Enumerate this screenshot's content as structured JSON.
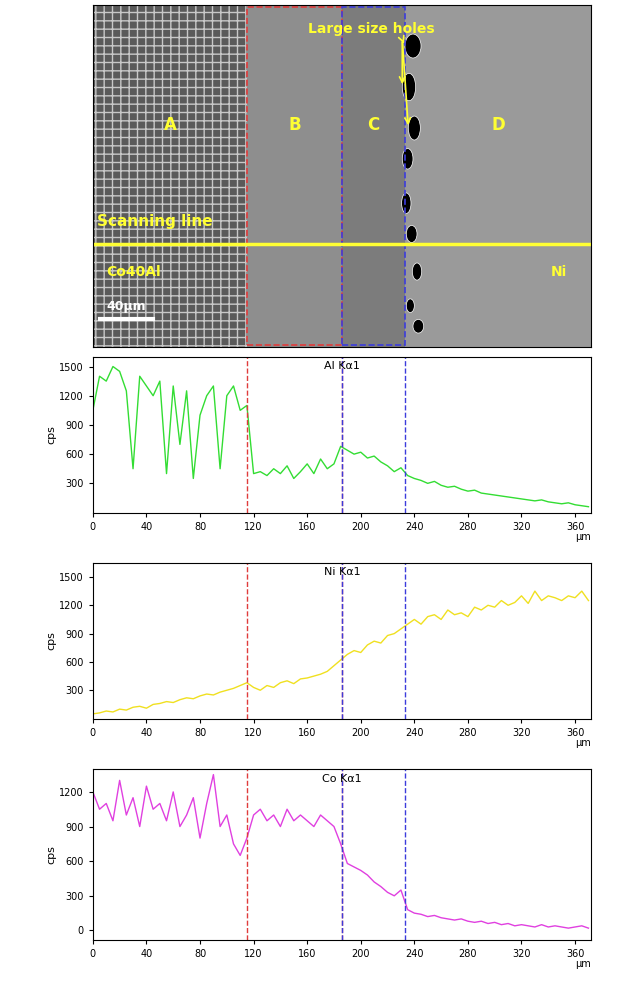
{
  "image": {
    "regions": [
      {
        "label": "A",
        "start": 0,
        "end": 115
      },
      {
        "label": "B",
        "start": 115,
        "end": 186
      },
      {
        "label": "C",
        "start": 186,
        "end": 233
      },
      {
        "label": "D",
        "start": 233,
        "end": 372
      }
    ],
    "boxes": [
      {
        "region": "B",
        "color": "#e03c3c"
      },
      {
        "region": "C",
        "color": "#3c3cdc"
      }
    ],
    "annotation": "Large size holes",
    "scan_line_label": "Scanning line",
    "left_label": "Co40Al",
    "right_label": "Ni",
    "scale_bar": {
      "label": "40μm",
      "length": 40
    }
  },
  "chart_data": [
    {
      "type": "line",
      "title": "Al Kα1",
      "x_label": "μm",
      "y_label": "cps",
      "color": "#33dd33",
      "xlim": [
        0,
        372
      ],
      "xticks": [
        0,
        40,
        80,
        120,
        160,
        200,
        240,
        280,
        320,
        360
      ],
      "ylim": [
        0,
        1600
      ],
      "yticks": [
        300,
        600,
        900,
        1200,
        1500
      ],
      "x": [
        0,
        5,
        10,
        15,
        20,
        25,
        30,
        35,
        40,
        45,
        50,
        55,
        60,
        65,
        70,
        75,
        80,
        85,
        90,
        95,
        100,
        105,
        110,
        115,
        120,
        125,
        130,
        135,
        140,
        145,
        150,
        155,
        160,
        165,
        170,
        175,
        180,
        185,
        190,
        195,
        200,
        205,
        210,
        215,
        220,
        225,
        230,
        235,
        240,
        245,
        250,
        255,
        260,
        265,
        270,
        275,
        280,
        285,
        290,
        295,
        300,
        305,
        310,
        315,
        320,
        325,
        330,
        335,
        340,
        345,
        350,
        355,
        360,
        365,
        370
      ],
      "values": [
        1050,
        1400,
        1350,
        1500,
        1450,
        1250,
        450,
        1400,
        1300,
        1200,
        1350,
        400,
        1300,
        700,
        1250,
        350,
        1000,
        1200,
        1300,
        450,
        1200,
        1300,
        1050,
        1100,
        400,
        420,
        380,
        450,
        400,
        480,
        350,
        420,
        500,
        400,
        550,
        450,
        500,
        680,
        640,
        600,
        620,
        560,
        580,
        520,
        480,
        420,
        460,
        380,
        350,
        330,
        300,
        320,
        280,
        260,
        270,
        240,
        220,
        230,
        200,
        190,
        180,
        170,
        160,
        150,
        140,
        130,
        120,
        130,
        110,
        100,
        90,
        100,
        80,
        70,
        60
      ]
    },
    {
      "type": "line",
      "title": "Ni Kα1",
      "x_label": "μm",
      "y_label": "cps",
      "color": "#f0e020",
      "xlim": [
        0,
        372
      ],
      "xticks": [
        0,
        40,
        80,
        120,
        160,
        200,
        240,
        280,
        320,
        360
      ],
      "ylim": [
        0,
        1650
      ],
      "yticks": [
        300,
        600,
        900,
        1200,
        1500
      ],
      "x": [
        0,
        5,
        10,
        15,
        20,
        25,
        30,
        35,
        40,
        45,
        50,
        55,
        60,
        65,
        70,
        75,
        80,
        85,
        90,
        95,
        100,
        105,
        110,
        115,
        120,
        125,
        130,
        135,
        140,
        145,
        150,
        155,
        160,
        165,
        170,
        175,
        180,
        185,
        190,
        195,
        200,
        205,
        210,
        215,
        220,
        225,
        230,
        235,
        240,
        245,
        250,
        255,
        260,
        265,
        270,
        275,
        280,
        285,
        290,
        295,
        300,
        305,
        310,
        315,
        320,
        325,
        330,
        335,
        340,
        345,
        350,
        355,
        360,
        365,
        370
      ],
      "values": [
        50,
        60,
        80,
        70,
        100,
        90,
        120,
        130,
        110,
        150,
        160,
        180,
        170,
        200,
        220,
        210,
        240,
        260,
        250,
        280,
        300,
        320,
        350,
        380,
        330,
        300,
        350,
        330,
        380,
        400,
        370,
        420,
        430,
        450,
        470,
        500,
        560,
        620,
        680,
        720,
        700,
        780,
        820,
        800,
        880,
        900,
        950,
        1000,
        1050,
        1000,
        1080,
        1100,
        1050,
        1150,
        1100,
        1120,
        1080,
        1180,
        1150,
        1200,
        1180,
        1250,
        1200,
        1230,
        1300,
        1220,
        1350,
        1250,
        1300,
        1280,
        1250,
        1300,
        1280,
        1350,
        1250
      ]
    },
    {
      "type": "line",
      "title": "Co Kα1",
      "x_label": "μm",
      "y_label": "cps",
      "color": "#e040e0",
      "xlim": [
        0,
        372
      ],
      "xticks": [
        0,
        40,
        80,
        120,
        160,
        200,
        240,
        280,
        320,
        360
      ],
      "ylim": [
        -80,
        1400
      ],
      "yticks": [
        0,
        300,
        600,
        900,
        1200
      ],
      "x": [
        0,
        5,
        10,
        15,
        20,
        25,
        30,
        35,
        40,
        45,
        50,
        55,
        60,
        65,
        70,
        75,
        80,
        85,
        90,
        95,
        100,
        105,
        110,
        115,
        120,
        125,
        130,
        135,
        140,
        145,
        150,
        155,
        160,
        165,
        170,
        175,
        180,
        185,
        190,
        195,
        200,
        205,
        210,
        215,
        220,
        225,
        230,
        235,
        240,
        245,
        250,
        255,
        260,
        265,
        270,
        275,
        280,
        285,
        290,
        295,
        300,
        305,
        310,
        315,
        320,
        325,
        330,
        335,
        340,
        345,
        350,
        355,
        360,
        365,
        370
      ],
      "values": [
        1200,
        1050,
        1100,
        950,
        1300,
        1000,
        1150,
        900,
        1250,
        1050,
        1100,
        950,
        1200,
        900,
        1000,
        1150,
        800,
        1100,
        1350,
        900,
        1000,
        750,
        650,
        800,
        1000,
        1050,
        950,
        1000,
        900,
        1050,
        950,
        1000,
        950,
        900,
        1000,
        950,
        900,
        750,
        580,
        550,
        520,
        480,
        420,
        380,
        330,
        300,
        350,
        180,
        150,
        140,
        120,
        130,
        110,
        100,
        90,
        100,
        80,
        70,
        80,
        60,
        70,
        50,
        60,
        40,
        50,
        40,
        30,
        50,
        30,
        40,
        30,
        20,
        30,
        40,
        20
      ]
    }
  ]
}
